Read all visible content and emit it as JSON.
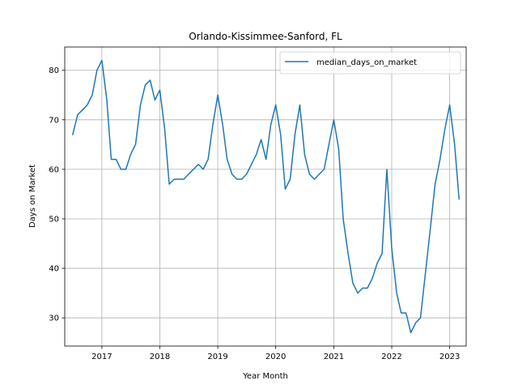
{
  "chart_data": {
    "type": "line",
    "title": "Orlando-Kissimmee-Sanford, FL",
    "xlabel": "Year Month",
    "ylabel": "Days on Market",
    "xlim": [
      "2016-05-12",
      "2023-04-15"
    ],
    "ylim": [
      24.3,
      84.7
    ],
    "grid": true,
    "legend_position": "top-right",
    "x_ticks": [
      {
        "date": "2017-01-01",
        "label": "2017"
      },
      {
        "date": "2018-01-01",
        "label": "2018"
      },
      {
        "date": "2019-01-01",
        "label": "2019"
      },
      {
        "date": "2020-01-01",
        "label": "2020"
      },
      {
        "date": "2021-01-01",
        "label": "2021"
      },
      {
        "date": "2022-01-01",
        "label": "2022"
      },
      {
        "date": "2023-01-01",
        "label": "2023"
      }
    ],
    "y_ticks": [
      30,
      40,
      50,
      60,
      70,
      80
    ],
    "series": [
      {
        "name": "median_days_on_market",
        "color": "#1f77b4",
        "x": [
          "2016-07",
          "2016-08",
          "2016-09",
          "2016-10",
          "2016-11",
          "2016-12",
          "2017-01",
          "2017-02",
          "2017-03",
          "2017-04",
          "2017-05",
          "2017-06",
          "2017-07",
          "2017-08",
          "2017-09",
          "2017-10",
          "2017-11",
          "2017-12",
          "2018-01",
          "2018-02",
          "2018-03",
          "2018-04",
          "2018-05",
          "2018-06",
          "2018-07",
          "2018-08",
          "2018-09",
          "2018-10",
          "2018-11",
          "2018-12",
          "2019-01",
          "2019-02",
          "2019-03",
          "2019-04",
          "2019-05",
          "2019-06",
          "2019-07",
          "2019-08",
          "2019-09",
          "2019-10",
          "2019-11",
          "2019-12",
          "2020-01",
          "2020-02",
          "2020-03",
          "2020-04",
          "2020-05",
          "2020-06",
          "2020-07",
          "2020-08",
          "2020-09",
          "2020-10",
          "2020-11",
          "2020-12",
          "2021-01",
          "2021-02",
          "2021-03",
          "2021-04",
          "2021-05",
          "2021-06",
          "2021-07",
          "2021-08",
          "2021-09",
          "2021-10",
          "2021-11",
          "2021-12",
          "2022-01",
          "2022-02",
          "2022-03",
          "2022-04",
          "2022-05",
          "2022-06",
          "2022-07",
          "2022-08",
          "2022-09",
          "2022-10",
          "2022-11",
          "2022-12",
          "2023-01",
          "2023-02",
          "2023-03"
        ],
        "values": [
          67,
          71,
          72,
          73,
          75,
          80,
          82,
          74,
          62,
          62,
          60,
          60,
          63,
          65,
          73,
          77,
          78,
          74,
          76,
          68,
          57,
          58,
          58,
          58,
          59,
          60,
          61,
          60,
          62,
          69,
          75,
          69,
          62,
          59,
          58,
          58,
          59,
          61,
          63,
          66,
          62,
          69,
          73,
          67,
          56,
          58,
          67,
          73,
          63,
          59,
          58,
          59,
          60,
          65,
          70,
          64,
          50,
          43,
          37,
          35,
          36,
          36,
          38,
          41,
          43,
          60,
          44,
          35,
          31,
          31,
          27,
          29,
          30,
          39,
          48,
          57,
          62,
          68,
          73,
          65,
          54
        ]
      }
    ]
  }
}
